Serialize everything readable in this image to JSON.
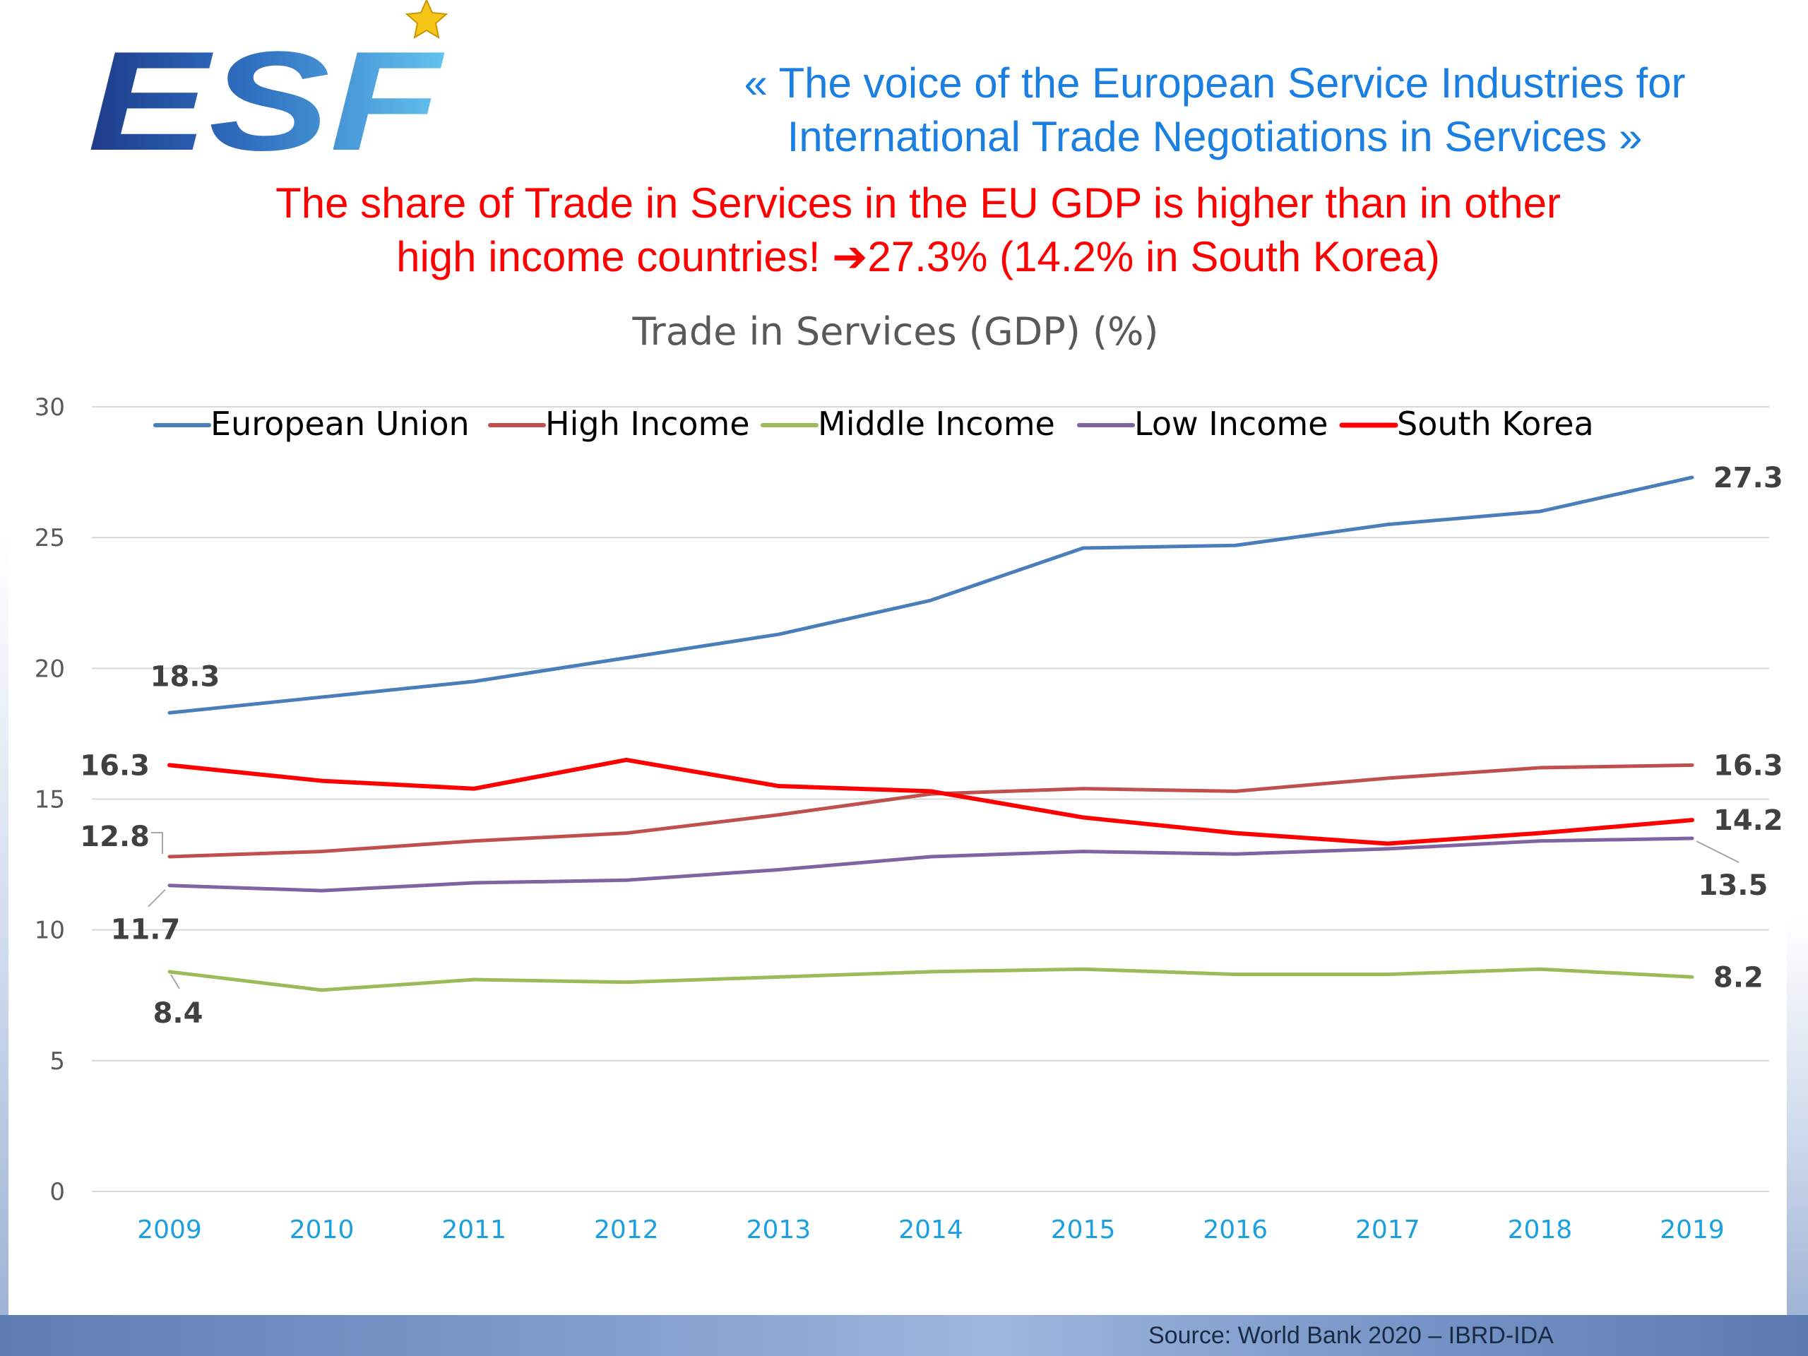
{
  "brand": {
    "logo_text": "ESF",
    "colors": {
      "logo_dark": "#1e3a8a",
      "logo_light": "#4fb3e8",
      "star": "#f5c518"
    }
  },
  "tagline": "«  The voice of the European Service Industries for\nInternational Trade Negotiations in Services  »",
  "headline": {
    "line1": "The share of Trade in Services in the EU GDP is higher than in other",
    "line2": "high income countries!   ➔27.3% (14.2% in South Korea)"
  },
  "source": "Source: World Bank 2020 – IBRD-IDA",
  "colors": {
    "tagline": "#1a7fe0",
    "headline": "#ff0000",
    "x_tick_labels": "#1aa0e0",
    "y_tick_labels": "#595959",
    "gridlines": "#d9d9d9"
  },
  "chart_data": {
    "type": "line",
    "title": "Trade in Services (GDP) (%)",
    "xlabel": "",
    "ylabel": "",
    "categories": [
      "2009",
      "2010",
      "2011",
      "2012",
      "2013",
      "2014",
      "2015",
      "2016",
      "2017",
      "2018",
      "2019"
    ],
    "ylim": [
      0,
      30
    ],
    "yticks": [
      0,
      5,
      10,
      15,
      20,
      25,
      30
    ],
    "grid": true,
    "legend_position": "top",
    "series": [
      {
        "name": "European Union",
        "color": "#4a7ebb",
        "values": [
          18.3,
          18.9,
          19.5,
          20.4,
          21.3,
          22.6,
          24.6,
          24.7,
          25.5,
          26.0,
          27.3
        ]
      },
      {
        "name": "High Income",
        "color": "#c0504d",
        "values": [
          12.8,
          13.0,
          13.4,
          13.7,
          14.4,
          15.2,
          15.4,
          15.3,
          15.8,
          16.2,
          16.3
        ]
      },
      {
        "name": "Middle Income",
        "color": "#9bbb59",
        "values": [
          8.4,
          7.7,
          8.1,
          8.0,
          8.2,
          8.4,
          8.5,
          8.3,
          8.3,
          8.5,
          8.2
        ]
      },
      {
        "name": "Low Income",
        "color": "#8064a2",
        "values": [
          11.7,
          11.5,
          11.8,
          11.9,
          12.3,
          12.8,
          13.0,
          12.9,
          13.1,
          13.4,
          13.5
        ]
      },
      {
        "name": "South Korea",
        "color": "#ff0000",
        "values": [
          16.3,
          15.7,
          15.4,
          16.5,
          15.5,
          15.3,
          14.3,
          13.7,
          13.3,
          13.7,
          14.2
        ]
      }
    ],
    "annotations": [
      {
        "text": "18.3",
        "series": "European Union",
        "year": "2009",
        "position": "above"
      },
      {
        "text": "16.3",
        "series": "South Korea",
        "year": "2009",
        "position": "left"
      },
      {
        "text": "12.8",
        "series": "High Income",
        "year": "2009",
        "position": "left"
      },
      {
        "text": "11.7",
        "series": "Low Income",
        "year": "2009",
        "position": "below"
      },
      {
        "text": "8.4",
        "series": "Middle Income",
        "year": "2009",
        "position": "below"
      },
      {
        "text": "27.3",
        "series": "European Union",
        "year": "2019",
        "position": "right"
      },
      {
        "text": "16.3",
        "series": "High Income",
        "year": "2019",
        "position": "right"
      },
      {
        "text": "14.2",
        "series": "South Korea",
        "year": "2019",
        "position": "right"
      },
      {
        "text": "13.5",
        "series": "Low Income",
        "year": "2019",
        "position": "below-right"
      },
      {
        "text": "8.2",
        "series": "Middle Income",
        "year": "2019",
        "position": "right"
      }
    ]
  }
}
